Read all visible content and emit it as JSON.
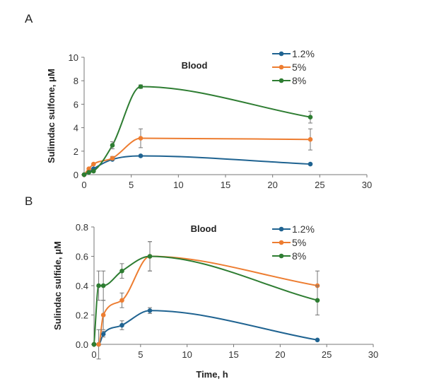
{
  "chart_data": [
    {
      "panel_label": "A",
      "type": "line",
      "title": "Blood",
      "xlabel": "",
      "ylabel": "Sulimdac sulfone, μM",
      "xlim": [
        0,
        30
      ],
      "ylim": [
        0,
        10
      ],
      "xticks": [
        0,
        5,
        10,
        15,
        20,
        25,
        30
      ],
      "yticks": [
        0,
        2,
        4,
        6,
        8,
        10
      ],
      "grid": false,
      "legend": "top-right",
      "x": [
        0,
        0.5,
        1,
        3,
        6,
        24
      ],
      "series": [
        {
          "name": "1.2%",
          "color": "#1f6391",
          "values": [
            0,
            0.2,
            0.5,
            1.3,
            1.6,
            0.9
          ],
          "errors": [
            0,
            0,
            0,
            0,
            0.05,
            0
          ]
        },
        {
          "name": "5%",
          "color": "#ed7d31",
          "values": [
            0,
            0.5,
            0.9,
            1.4,
            3.1,
            3.0
          ],
          "errors": [
            0,
            0,
            0,
            0.15,
            0.8,
            0.9
          ]
        },
        {
          "name": "8%",
          "color": "#2e7d32",
          "values": [
            0,
            0.2,
            0.3,
            2.5,
            7.5,
            4.9
          ],
          "errors": [
            0,
            0,
            0,
            0.3,
            0.15,
            0.5
          ]
        }
      ]
    },
    {
      "panel_label": "B",
      "type": "line",
      "title": "Blood",
      "xlabel": "Time, h",
      "ylabel": "Sulindac sulfide, μM",
      "xlim": [
        0,
        30
      ],
      "ylim": [
        0,
        0.8
      ],
      "xticks": [
        0,
        5,
        10,
        15,
        20,
        25,
        30
      ],
      "yticks": [
        "0.0",
        "0.2",
        "0.4",
        "0.6",
        "0.8"
      ],
      "grid": false,
      "legend": "top-right",
      "x": [
        0,
        0.5,
        1,
        3,
        6,
        24
      ],
      "series": [
        {
          "name": "1.2%",
          "color": "#1f6391",
          "values": [
            0,
            0,
            0.07,
            0.13,
            0.23,
            0.03
          ],
          "errors": [
            0,
            0,
            0.02,
            0.03,
            0.02,
            0
          ]
        },
        {
          "name": "5%",
          "color": "#ed7d31",
          "values": [
            0,
            0,
            0.2,
            0.3,
            0.6,
            0.4
          ],
          "errors": [
            0,
            0.1,
            0.1,
            0.05,
            0.1,
            0.1
          ]
        },
        {
          "name": "8%",
          "color": "#2e7d32",
          "values": [
            0,
            0.4,
            0.4,
            0.5,
            0.6,
            0.3
          ],
          "errors": [
            0,
            0.1,
            0.1,
            0.05,
            0.1,
            0.1
          ]
        }
      ]
    }
  ]
}
